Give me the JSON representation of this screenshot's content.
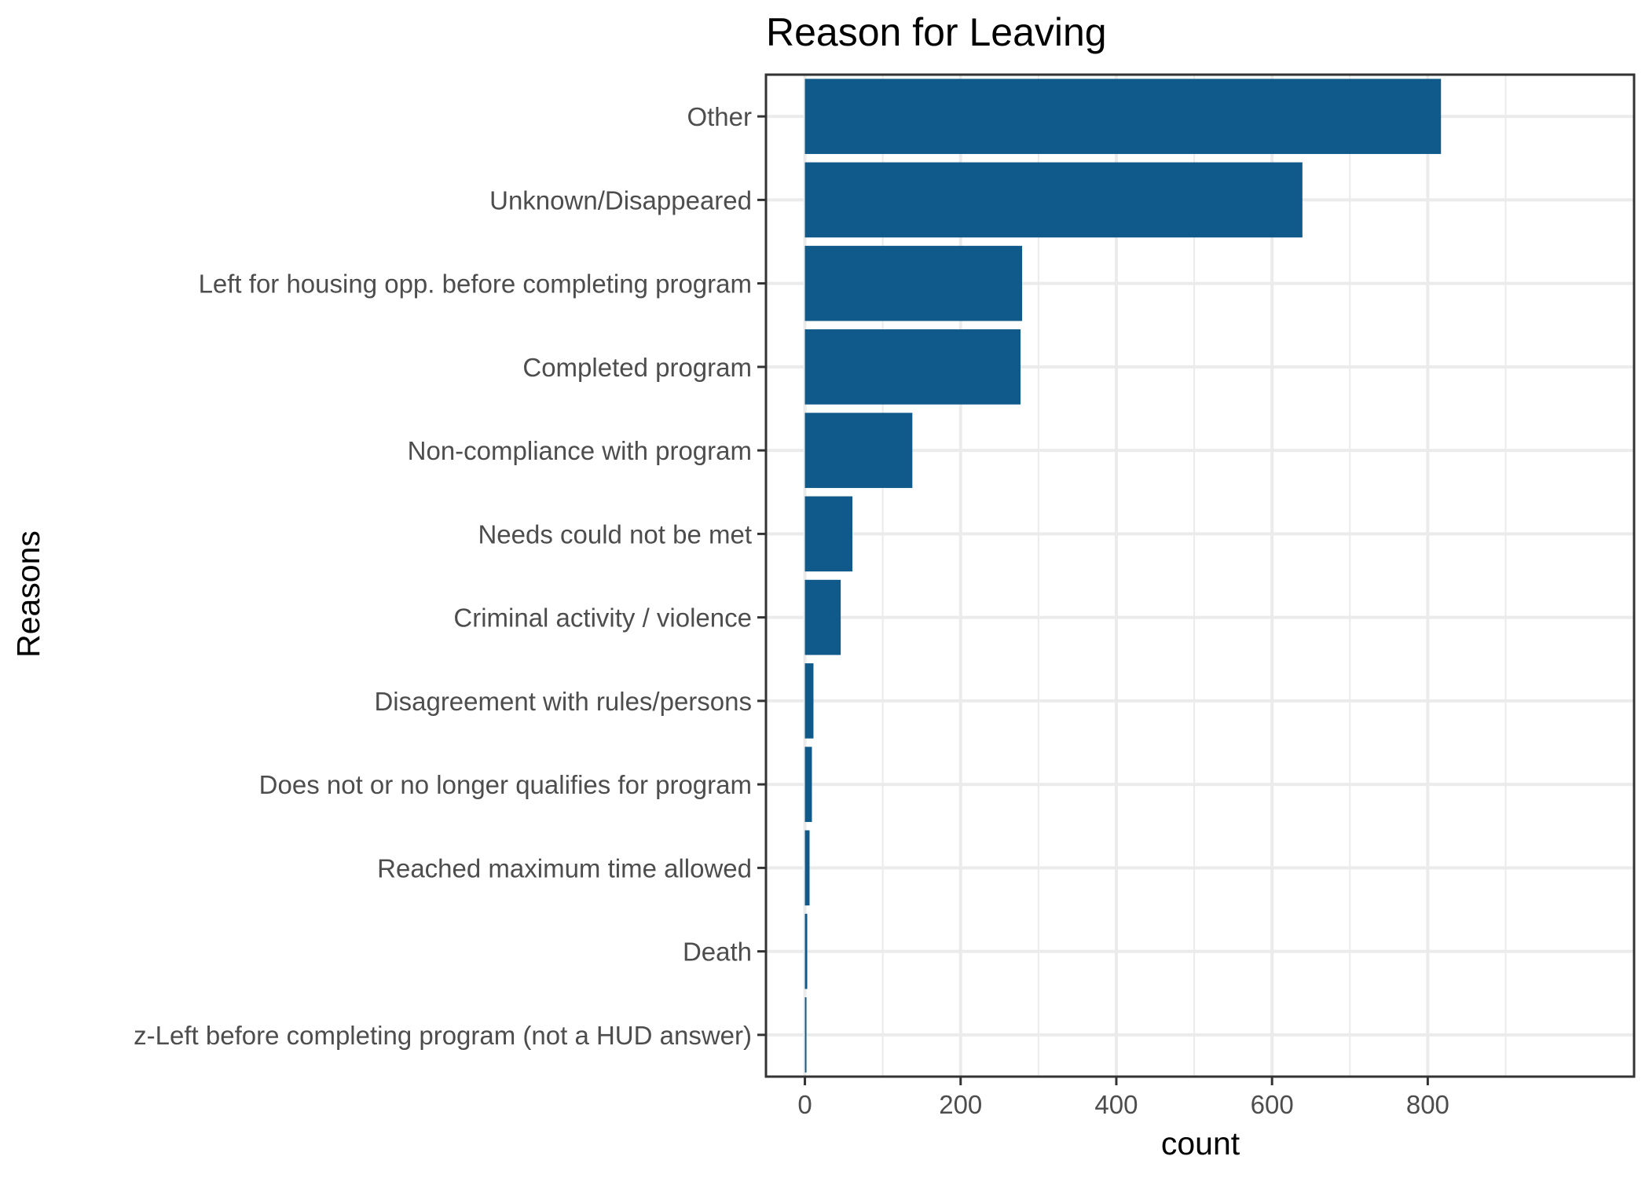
{
  "chart_data": {
    "type": "bar",
    "orientation": "horizontal",
    "title": "Reason for Leaving",
    "xlabel": "count",
    "ylabel": "Reasons",
    "xlim": [
      -50,
      1065
    ],
    "xticks": [
      0,
      200,
      400,
      600,
      800
    ],
    "grid": true,
    "bar_color": "#0f5a8a",
    "categories": [
      "Other",
      "Unknown/Disappeared",
      "Left for housing opp. before completing program",
      "Completed program",
      "Non-compliance with program",
      "Needs could not be met",
      "Criminal activity / violence",
      "Disagreement with rules/persons",
      "Does not or no longer qualifies for program",
      "Reached maximum time allowed",
      "Death",
      "z-Left before completing program (not a HUD answer)"
    ],
    "values": [
      817,
      639,
      279,
      277,
      138,
      61,
      46,
      11,
      9,
      6,
      3,
      2
    ]
  }
}
